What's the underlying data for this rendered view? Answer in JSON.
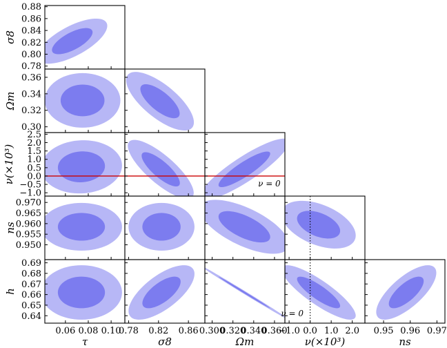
{
  "chart_data": {
    "type": "contour-triangle",
    "title": "",
    "colors": {
      "outer": "#b7b7f6",
      "inner": "#7c7cef",
      "frame": "#000000",
      "ref_solid": "#cc0000",
      "ref_dotted": "#000000"
    },
    "parameters": [
      {
        "name": "tau",
        "label": "τ",
        "range": [
          0.042,
          0.112
        ],
        "ticks": [
          0.06,
          0.08,
          0.1
        ],
        "tick_labels": [
          "0.06",
          "0.08",
          "0.10"
        ]
      },
      {
        "name": "sigma8",
        "label": "σ8",
        "range": [
          0.775,
          0.882
        ],
        "ticks": [
          0.78,
          0.8,
          0.82,
          0.84,
          0.86,
          0.88
        ],
        "tick_labels": [
          "0.78",
          "0.80",
          "0.82",
          "0.84",
          "0.86",
          "0.88"
        ],
        "x_ticks": [
          0.78,
          0.82,
          0.86
        ],
        "x_tick_labels": [
          "0.78",
          "0.82",
          "0.86"
        ]
      },
      {
        "name": "omega_m",
        "label": "Ωm",
        "range": [
          0.293,
          0.37
        ],
        "ticks": [
          0.3,
          0.32,
          0.34,
          0.36
        ],
        "tick_labels": [
          "0.30",
          "0.32",
          "0.34",
          "0.36"
        ],
        "x_tick_labels": [
          "0.300",
          "0.320",
          "0.340",
          "0.360"
        ]
      },
      {
        "name": "nu",
        "label": "ν(×10³)",
        "range": [
          -1.2,
          2.6
        ],
        "ticks": [
          -1.0,
          -0.5,
          0.0,
          0.5,
          1.0,
          1.5,
          2.0,
          2.5
        ],
        "tick_labels": [
          "−1.0",
          "−0.5",
          "0.0",
          "0.5",
          "1.0",
          "1.5",
          "2.0",
          "2.5"
        ],
        "x_ticks": [
          -1.0,
          0.0,
          1.0,
          2.0
        ],
        "x_tick_labels": [
          "−1.0",
          "0.0",
          "1.0",
          "2.0"
        ]
      },
      {
        "name": "ns",
        "label": "ns",
        "range": [
          0.943,
          0.973
        ],
        "ticks": [
          0.95,
          0.955,
          0.96,
          0.965,
          0.97
        ],
        "tick_labels": [
          "0.950",
          "0.955",
          "0.960",
          "0.965",
          "0.970"
        ],
        "x_ticks": [
          0.95,
          0.96,
          0.97
        ],
        "x_tick_labels": [
          "0.95",
          "0.96",
          "0.97"
        ]
      },
      {
        "name": "h",
        "label": "h",
        "range": [
          0.633,
          0.693
        ],
        "ticks": [
          0.64,
          0.65,
          0.66,
          0.67,
          0.68,
          0.69
        ],
        "tick_labels": [
          "0.64",
          "0.65",
          "0.66",
          "0.67",
          "0.68",
          "0.69"
        ]
      }
    ],
    "panels": [
      {
        "x": "tau",
        "y": "sigma8",
        "mean": [
          0.066,
          0.822
        ],
        "sd": [
          0.0125,
          0.0155
        ],
        "rho": 0.68,
        "inner_scale": 0.58
      },
      {
        "x": "tau",
        "y": "omega_m",
        "mean": [
          0.075,
          0.332
        ],
        "sd": [
          0.0135,
          0.0135
        ],
        "rho": 0.0,
        "inner_scale": 0.58
      },
      {
        "x": "sigma8",
        "y": "omega_m",
        "mean": [
          0.822,
          0.331
        ],
        "sd": [
          0.0185,
          0.0145
        ],
        "rho": -0.72,
        "inner_scale": 0.58
      },
      {
        "x": "tau",
        "y": "nu",
        "mean": [
          0.074,
          0.55
        ],
        "sd": [
          0.0145,
          0.65
        ],
        "rho": 0.05,
        "inner_scale": 0.58
      },
      {
        "x": "sigma8",
        "y": "nu",
        "mean": [
          0.823,
          0.4
        ],
        "sd": [
          0.018,
          0.72
        ],
        "rho": -0.8,
        "inner_scale": 0.58
      },
      {
        "x": "omega_m",
        "y": "nu",
        "mean": [
          0.331,
          0.4
        ],
        "sd": [
          0.0175,
          0.75
        ],
        "rho": 0.88,
        "inner_scale": 0.58
      },
      {
        "x": "tau",
        "y": "ns",
        "mean": [
          0.074,
          0.9585
        ],
        "sd": [
          0.0145,
          0.0046
        ],
        "rho": 0.0,
        "inner_scale": 0.58
      },
      {
        "x": "sigma8",
        "y": "ns",
        "mean": [
          0.824,
          0.9585
        ],
        "sd": [
          0.018,
          0.0046
        ],
        "rho": 0.0,
        "inner_scale": 0.58
      },
      {
        "x": "omega_m",
        "y": "ns",
        "mean": [
          0.331,
          0.9585
        ],
        "sd": [
          0.0175,
          0.0052
        ],
        "rho": -0.65,
        "inner_scale": 0.58
      },
      {
        "x": "nu",
        "y": "ns",
        "mean": [
          0.4,
          0.9595
        ],
        "sd": [
          0.72,
          0.0046
        ],
        "rho": -0.45,
        "inner_scale": 0.58
      },
      {
        "x": "tau",
        "y": "h",
        "mean": [
          0.074,
          0.662
        ],
        "sd": [
          0.0145,
          0.0105
        ],
        "rho": 0.0,
        "inner_scale": 0.58
      },
      {
        "x": "sigma8",
        "y": "h",
        "mean": [
          0.824,
          0.662
        ],
        "sd": [
          0.018,
          0.0105
        ],
        "rho": 0.68,
        "inner_scale": 0.58
      },
      {
        "x": "omega_m",
        "y": "h",
        "mean": [
          0.331,
          0.662
        ],
        "sd": [
          0.0175,
          0.0105
        ],
        "rho": -0.998,
        "inner_scale": 0.58
      },
      {
        "x": "nu",
        "y": "h",
        "mean": [
          0.4,
          0.662
        ],
        "sd": [
          0.72,
          0.0105
        ],
        "rho": -0.85,
        "inner_scale": 0.58
      },
      {
        "x": "ns",
        "y": "h",
        "mean": [
          0.9585,
          0.662
        ],
        "sd": [
          0.0046,
          0.0105
        ],
        "rho": 0.72,
        "inner_scale": 0.58
      }
    ],
    "reference_lines": [
      {
        "panel_x": "tau",
        "panel_y": "nu",
        "axis": "y",
        "value": 0.0,
        "style": "solid",
        "color": "ref_solid",
        "span": "tau-through-omega_m"
      },
      {
        "panel_x": "nu",
        "panel_y": "ns",
        "axis": "x",
        "value": 0.0,
        "style": "dotted",
        "color": "ref_dotted"
      },
      {
        "panel_x": "nu",
        "panel_y": "h",
        "axis": "x",
        "value": 0.0,
        "style": "dotted",
        "color": "ref_dotted"
      }
    ],
    "annotations": [
      {
        "panel_x": "omega_m",
        "panel_y": "nu",
        "text": "ν = 0",
        "at": [
          0.355,
          -0.62
        ]
      },
      {
        "panel_x": "nu",
        "panel_y": "h",
        "text": "ν = 0",
        "at": [
          -0.85,
          0.6395
        ]
      }
    ]
  }
}
